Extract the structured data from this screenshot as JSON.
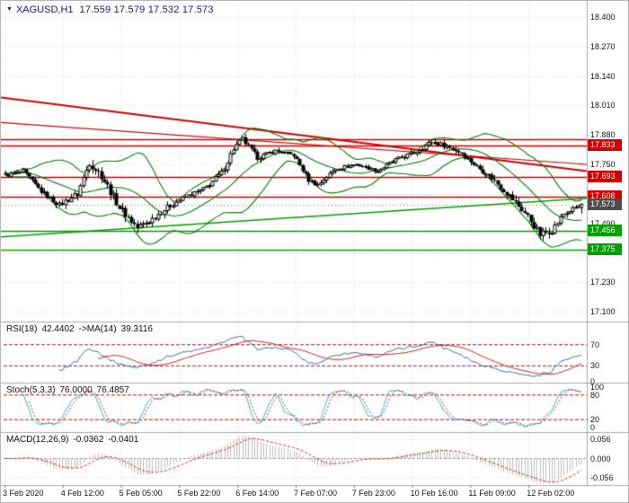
{
  "header": {
    "symbol": "XAGUSD,H1",
    "quote": "17.559 17.579 17.532 17.573"
  },
  "chart_data": {
    "type": "candlestick",
    "title": "XAGUSD H1 chart with Bollinger Bands, trendlines, RSI, Stochastic and MACD",
    "symbol": "XAGUSD",
    "timeframe": "H1",
    "quote": {
      "open": 17.559,
      "high": 17.579,
      "low": 17.532,
      "close": 17.573
    },
    "x_labels": [
      "3 Feb 2020",
      "4 Feb 12:00",
      "5 Feb 05:00",
      "5 Feb 22:00",
      "6 Feb 14:00",
      "7 Feb 07:00",
      "7 Feb 23:00",
      "10 Feb 16:00",
      "11 Feb 09:00",
      "12 Feb 02:00"
    ],
    "y_ticks": [
      "18.400",
      "18.270",
      "18.140",
      "18.010",
      "17.880",
      "17.750",
      "17.620",
      "17.490",
      "17.360",
      "17.230",
      "17.100"
    ],
    "y_range": [
      17.06,
      18.44
    ],
    "candle_count": 193,
    "close_anchors": [
      [
        0,
        17.7
      ],
      [
        6,
        17.72
      ],
      [
        12,
        17.63
      ],
      [
        18,
        17.57
      ],
      [
        24,
        17.62
      ],
      [
        28,
        17.76
      ],
      [
        32,
        17.7
      ],
      [
        38,
        17.56
      ],
      [
        44,
        17.47
      ],
      [
        48,
        17.5
      ],
      [
        54,
        17.56
      ],
      [
        59,
        17.6
      ],
      [
        66,
        17.64
      ],
      [
        72,
        17.71
      ],
      [
        76,
        17.82
      ],
      [
        79,
        17.86
      ],
      [
        84,
        17.78
      ],
      [
        90,
        17.81
      ],
      [
        96,
        17.79
      ],
      [
        101,
        17.68
      ],
      [
        104,
        17.66
      ],
      [
        110,
        17.73
      ],
      [
        117,
        17.75
      ],
      [
        124,
        17.72
      ],
      [
        130,
        17.77
      ],
      [
        136,
        17.8
      ],
      [
        142,
        17.85
      ],
      [
        147,
        17.83
      ],
      [
        152,
        17.8
      ],
      [
        157,
        17.74
      ],
      [
        162,
        17.69
      ],
      [
        168,
        17.61
      ],
      [
        174,
        17.52
      ],
      [
        178,
        17.44
      ],
      [
        182,
        17.46
      ],
      [
        186,
        17.53
      ],
      [
        190,
        17.56
      ],
      [
        192,
        17.573
      ]
    ],
    "volatility_anchors": [
      [
        0,
        0.014
      ],
      [
        18,
        0.02
      ],
      [
        28,
        0.032
      ],
      [
        44,
        0.028
      ],
      [
        60,
        0.016
      ],
      [
        76,
        0.024
      ],
      [
        90,
        0.014
      ],
      [
        104,
        0.018
      ],
      [
        120,
        0.012
      ],
      [
        140,
        0.018
      ],
      [
        160,
        0.02
      ],
      [
        178,
        0.03
      ],
      [
        192,
        0.012
      ]
    ],
    "levels": {
      "resistance": [
        17.862,
        17.833,
        17.693,
        17.608
      ],
      "support": [
        17.456,
        17.375
      ],
      "current": 17.573
    },
    "trendlines": {
      "red": [
        {
          "x1": 0,
          "p1": 18.045,
          "x2": 1,
          "p2": 17.72
        },
        {
          "x1": 0,
          "p1": 17.935,
          "x2": 1,
          "p2": 17.75
        }
      ],
      "green": [
        {
          "x1": 0,
          "p1": 17.43,
          "x2": 1,
          "p2": 17.6
        }
      ]
    },
    "axis_badges": [
      {
        "text": "17.833",
        "price": 17.833,
        "color": "#d40000"
      },
      {
        "text": "17.693",
        "price": 17.693,
        "color": "#d40000"
      },
      {
        "text": "17.608",
        "price": 17.608,
        "color": "#d40000"
      },
      {
        "text": "17.573",
        "price": 17.573,
        "color": "#4d4d4d"
      },
      {
        "text": "17.456",
        "price": 17.456,
        "color": "#00a000"
      },
      {
        "text": "17.375",
        "price": 17.375,
        "color": "#00a000"
      }
    ],
    "indicators": {
      "rsi": {
        "label": "RSI(18)",
        "value": "42.4402",
        "ma_label": "->MA(14)",
        "ma_value": "39.3116",
        "period": 18,
        "ma_period": 14,
        "levels": [
          70,
          30
        ],
        "ticks": [
          "70",
          "30",
          "0"
        ]
      },
      "stoch": {
        "label": "Stoch(5,3,3)",
        "value": "76.0000",
        "signal_value": "76.4857",
        "levels": [
          80,
          20
        ],
        "ticks": [
          "100",
          "80",
          "20",
          "0"
        ]
      },
      "macd": {
        "label": "MACD(12,26,9)",
        "value": "-0.0362",
        "signal_value": "-0.0401",
        "ticks": [
          "0.056",
          "0.000",
          "-0.056"
        ]
      }
    },
    "colors": {
      "grid": "#d9d9d9",
      "separator": "#a8a8a8",
      "candle_outline": "#000000",
      "bull_fill": "#ffffff",
      "bear_fill": "#000000",
      "bollinger": "#008000",
      "resistance": "#d40000",
      "support": "#00a000",
      "current_line": "#777777",
      "rsi_line": "#3a6ea5",
      "rsi_ma": "#d42222",
      "stoch_k": "#29b6cf",
      "stoch_d": "#d42222",
      "macd_hist": "#bdbdbd",
      "macd_signal": "#d42222",
      "text": "#151515",
      "title": "#16168c"
    }
  }
}
